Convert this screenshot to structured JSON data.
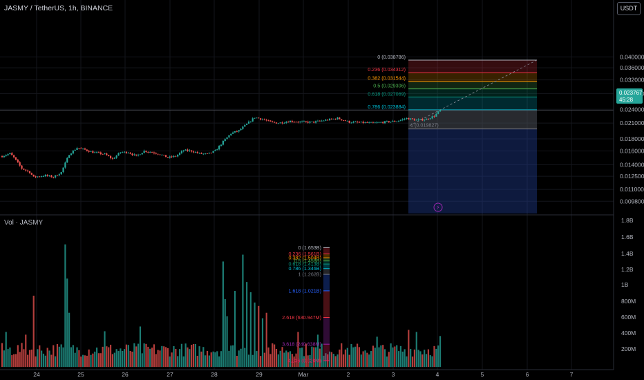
{
  "header": {
    "symbol": "JASMY / TetherUS, 1h, BINANCE"
  },
  "volume_header": {
    "label": "Vol · JASMY"
  },
  "currency_button": {
    "label": "USDT"
  },
  "price_badge": {
    "value": "0.023767",
    "countdown": "45:28"
  },
  "colors": {
    "up": "#26a69a",
    "down": "#ef5350",
    "fib_line": "#8a8f9a"
  },
  "chart_data": [
    {
      "type": "candlestick",
      "title": "",
      "y_axis": {
        "ticks": [
          "0.040000",
          "0.036000",
          "0.032000",
          "0.028000",
          "0.024000",
          "0.021000",
          "0.018000",
          "0.016000",
          "0.014000",
          "0.012500",
          "0.011000",
          "0.009800"
        ],
        "scale": "log"
      },
      "x_axis": {
        "ticks": [
          "24",
          "25",
          "26",
          "27",
          "28",
          "29",
          "Mar",
          "2",
          "3",
          "4",
          "5",
          "6",
          "7"
        ]
      },
      "last_price": 0.023767,
      "waypoints": [
        [
          0,
          0.0152
        ],
        [
          4,
          0.0156
        ],
        [
          6,
          0.015
        ],
        [
          10,
          0.0135
        ],
        [
          14,
          0.013
        ],
        [
          16,
          0.0124
        ],
        [
          22,
          0.0126
        ],
        [
          26,
          0.0124
        ],
        [
          30,
          0.013
        ],
        [
          34,
          0.0155
        ],
        [
          38,
          0.0165
        ],
        [
          42,
          0.0162
        ],
        [
          46,
          0.0158
        ],
        [
          52,
          0.0155
        ],
        [
          56,
          0.0148
        ],
        [
          60,
          0.0158
        ],
        [
          64,
          0.0158
        ],
        [
          68,
          0.0152
        ],
        [
          72,
          0.016
        ],
        [
          76,
          0.0158
        ],
        [
          80,
          0.0155
        ],
        [
          84,
          0.015
        ],
        [
          88,
          0.0152
        ],
        [
          92,
          0.0161
        ],
        [
          96,
          0.016
        ],
        [
          100,
          0.0156
        ],
        [
          104,
          0.0155
        ],
        [
          108,
          0.016
        ],
        [
          112,
          0.0175
        ],
        [
          116,
          0.019
        ],
        [
          120,
          0.0195
        ],
        [
          124,
          0.0208
        ],
        [
          128,
          0.0222
        ],
        [
          132,
          0.0218
        ],
        [
          136,
          0.0212
        ],
        [
          140,
          0.021
        ],
        [
          146,
          0.0214
        ],
        [
          152,
          0.0212
        ],
        [
          158,
          0.0212
        ],
        [
          164,
          0.0216
        ],
        [
          170,
          0.022
        ],
        [
          176,
          0.0212
        ],
        [
          182,
          0.0211
        ],
        [
          188,
          0.021
        ],
        [
          194,
          0.0212
        ],
        [
          200,
          0.0214
        ],
        [
          205,
          0.022
        ],
        [
          210,
          0.0216
        ],
        [
          215,
          0.0218
        ],
        [
          219,
          0.0225
        ],
        [
          222,
          0.0238
        ]
      ]
    },
    {
      "type": "bar",
      "title": "Volume",
      "y_axis": {
        "ticks": [
          "1.8B",
          "1.6B",
          "1.4B",
          "1.2B",
          "1B",
          "800M",
          "600M",
          "400M",
          "200M"
        ]
      },
      "spikes": [
        {
          "index": 2,
          "value": 420000000
        },
        {
          "index": 12,
          "value": 380000000
        },
        {
          "index": 16,
          "value": 950000000
        },
        {
          "index": 32,
          "value": 1700000000
        },
        {
          "index": 33,
          "value": 1200000000
        },
        {
          "index": 34,
          "value": 700000000
        },
        {
          "index": 52,
          "value": 430000000
        },
        {
          "index": 70,
          "value": 500000000
        },
        {
          "index": 112,
          "value": 1450000000
        },
        {
          "index": 113,
          "value": 900000000
        },
        {
          "index": 114,
          "value": 650000000
        },
        {
          "index": 118,
          "value": 1020000000
        },
        {
          "index": 122,
          "value": 1550000000
        },
        {
          "index": 124,
          "value": 1150000000
        },
        {
          "index": 126,
          "value": 1000000000
        },
        {
          "index": 128,
          "value": 850000000
        },
        {
          "index": 130,
          "value": 800000000
        },
        {
          "index": 132,
          "value": 620000000
        },
        {
          "index": 134,
          "value": 700000000
        },
        {
          "index": 150,
          "value": 420000000
        },
        {
          "index": 160,
          "value": 380000000
        },
        {
          "index": 190,
          "value": 350000000
        },
        {
          "index": 206,
          "value": 450000000
        },
        {
          "index": 210,
          "value": 420000000
        },
        {
          "index": 222,
          "value": 360000000
        }
      ]
    }
  ],
  "fib_price": [
    {
      "label": "0 (0.038786)",
      "value": 0.038786,
      "color": "#b2b5be"
    },
    {
      "label": "0.236 (0.034312)",
      "value": 0.034312,
      "color": "#f23645"
    },
    {
      "label": "0.382 (0.031544)",
      "value": 0.031544,
      "color": "#ff9800"
    },
    {
      "label": "0.5 (0.029306)",
      "value": 0.029306,
      "color": "#4caf50"
    },
    {
      "label": "0.618 (0.027069)",
      "value": 0.027069,
      "color": "#089981"
    },
    {
      "label": "0.786 (0.023884)",
      "value": 0.023884,
      "color": "#00bcd4"
    },
    {
      "label": "1 (0.019827)",
      "value": 0.019827,
      "color": "#787b86"
    }
  ],
  "fib_volume": [
    {
      "label": "0 (1.653B)",
      "value": 1653000000,
      "color": "#b2b5be"
    },
    {
      "label": "0.236 (1.561B)",
      "value": 1561000000,
      "color": "#f23645"
    },
    {
      "label": "0.382 (1.504B)",
      "value": 1504000000,
      "color": "#ff9800"
    },
    {
      "label": "0.5 (1.458B)",
      "value": 1458000000,
      "color": "#4caf50"
    },
    {
      "label": "0.618 (1.413B)",
      "value": 1413000000,
      "color": "#089981"
    },
    {
      "label": "0.786 (1.346B)",
      "value": 1346000000,
      "color": "#00bcd4"
    },
    {
      "label": "1 (1.262B)",
      "value": 1262000000,
      "color": "#787b86"
    },
    {
      "label": "1.618 (1.021B)",
      "value": 1021000000,
      "color": "#2962ff"
    },
    {
      "label": "2.618 (630.947M)",
      "value": 630947000,
      "color": "#f23645"
    },
    {
      "label": "3.618 (240.638M)",
      "value": 240638000,
      "color": "#9c27b0"
    },
    {
      "label": "4.236 (0.020M)",
      "value": 20000,
      "color": "#e91e63"
    }
  ]
}
